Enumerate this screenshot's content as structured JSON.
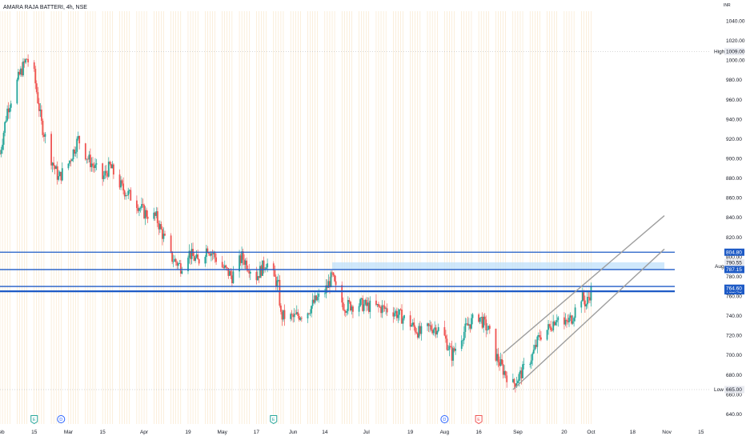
{
  "header": {
    "title": "AMARA RAJA BATTERI, 4h, NSE",
    "currency": "INR"
  },
  "colors": {
    "up": "#26a69a",
    "down": "#ef5350",
    "level_line": "#1e5bc6",
    "channel": "#9e9e9e",
    "grid": "#f5d7a8",
    "zone": "#bbdefb"
  },
  "chart_data": {
    "type": "candlestick",
    "timeframe": "4h",
    "ylim": [
      630,
      1050
    ],
    "y_ticks": [
      640,
      660,
      680,
      700,
      720,
      740,
      760,
      780,
      800,
      820,
      840,
      860,
      880,
      900,
      920,
      940,
      960,
      980,
      1000,
      1020,
      1040
    ],
    "x_ticks": [
      {
        "label": "Feb",
        "date": "2021-02-01"
      },
      {
        "label": "15",
        "date": "2021-02-15"
      },
      {
        "label": "Mar",
        "date": "2021-03-01"
      },
      {
        "label": "15",
        "date": "2021-03-15"
      },
      {
        "label": "Apr",
        "date": "2021-04-01"
      },
      {
        "label": "19",
        "date": "2021-04-19"
      },
      {
        "label": "May",
        "date": "2021-05-03"
      },
      {
        "label": "17",
        "date": "2021-05-17"
      },
      {
        "label": "Jun",
        "date": "2021-06-01"
      },
      {
        "label": "14",
        "date": "2021-06-14"
      },
      {
        "label": "Jul",
        "date": "2021-07-01"
      },
      {
        "label": "19",
        "date": "2021-07-19"
      },
      {
        "label": "Aug",
        "date": "2021-08-02"
      },
      {
        "label": "16",
        "date": "2021-08-16"
      },
      {
        "label": "Sep",
        "date": "2021-09-01"
      },
      {
        "label": "20",
        "date": "2021-09-20"
      },
      {
        "label": "Oct",
        "date": "2021-10-01"
      },
      {
        "label": "18",
        "date": "2021-10-18"
      },
      {
        "label": "Nov",
        "date": "2021-11-01"
      },
      {
        "label": "15",
        "date": "2021-11-15"
      }
    ],
    "price_path": [
      [
        "2021-02-01",
        905
      ],
      [
        "2021-02-04",
        950
      ],
      [
        "2021-02-09",
        985
      ],
      [
        "2021-02-12",
        1002
      ],
      [
        "2021-02-15",
        985
      ],
      [
        "2021-02-18",
        935
      ],
      [
        "2021-02-22",
        900
      ],
      [
        "2021-02-25",
        880
      ],
      [
        "2021-03-01",
        895
      ],
      [
        "2021-03-05",
        920
      ],
      [
        "2021-03-09",
        900
      ],
      [
        "2021-03-15",
        880
      ],
      [
        "2021-03-18",
        892
      ],
      [
        "2021-03-23",
        870
      ],
      [
        "2021-03-29",
        855
      ],
      [
        "2021-04-01",
        845
      ],
      [
        "2021-04-06",
        840
      ],
      [
        "2021-04-12",
        800
      ],
      [
        "2021-04-16",
        790
      ],
      [
        "2021-04-19",
        805
      ],
      [
        "2021-04-23",
        795
      ],
      [
        "2021-04-27",
        810
      ],
      [
        "2021-05-03",
        790
      ],
      [
        "2021-05-07",
        780
      ],
      [
        "2021-05-11",
        800
      ],
      [
        "2021-05-14",
        790
      ],
      [
        "2021-05-17",
        780
      ],
      [
        "2021-05-21",
        795
      ],
      [
        "2021-05-26",
        770
      ],
      [
        "2021-05-27",
        740
      ],
      [
        "2021-06-01",
        738
      ],
      [
        "2021-06-07",
        745
      ],
      [
        "2021-06-10",
        755
      ],
      [
        "2021-06-14",
        765
      ],
      [
        "2021-06-17",
        780
      ],
      [
        "2021-06-19",
        762
      ],
      [
        "2021-06-22",
        750
      ],
      [
        "2021-06-28",
        752
      ],
      [
        "2021-07-01",
        750
      ],
      [
        "2021-07-07",
        748
      ],
      [
        "2021-07-12",
        745
      ],
      [
        "2021-07-16",
        738
      ],
      [
        "2021-07-19",
        732
      ],
      [
        "2021-07-23",
        722
      ],
      [
        "2021-07-27",
        728
      ],
      [
        "2021-07-30",
        728
      ],
      [
        "2021-08-02",
        718
      ],
      [
        "2021-08-05",
        700
      ],
      [
        "2021-08-09",
        720
      ],
      [
        "2021-08-12",
        732
      ],
      [
        "2021-08-16",
        740
      ],
      [
        "2021-08-20",
        725
      ],
      [
        "2021-08-23",
        700
      ],
      [
        "2021-08-26",
        685
      ],
      [
        "2021-08-30",
        670
      ],
      [
        "2021-09-02",
        680
      ],
      [
        "2021-09-07",
        700
      ],
      [
        "2021-09-10",
        720
      ],
      [
        "2021-09-14",
        728
      ],
      [
        "2021-09-17",
        740
      ],
      [
        "2021-09-20",
        730
      ],
      [
        "2021-09-23",
        738
      ],
      [
        "2021-09-27",
        760
      ],
      [
        "2021-09-29",
        752
      ],
      [
        "2021-10-01",
        766
      ]
    ],
    "period_high": {
      "label": "High",
      "value": 1009.0
    },
    "period_low": {
      "label": "Low",
      "value": 665.0
    },
    "horizontal_levels": [
      {
        "value": 804.8,
        "label": "804.80"
      },
      {
        "value": 787.15,
        "label": "787.15"
      },
      {
        "value": 769.95,
        "label": "769.95"
      },
      {
        "value": 765.45,
        "label": "765.45"
      },
      {
        "value": 764.6,
        "label": "764.60"
      }
    ],
    "zone": {
      "low": 787.15,
      "high": 794.5,
      "start": "2021-06-17",
      "end": "2021-10-31",
      "label": "Aug",
      "value_label": "790.55"
    },
    "channel": [
      {
        "start": [
          "2021-08-26",
          702
        ],
        "end": [
          "2021-10-31",
          842
        ]
      },
      {
        "start": [
          "2021-08-30",
          665
        ],
        "end": [
          "2021-10-31",
          808
        ]
      }
    ],
    "events": [
      {
        "type": "E",
        "date": "2021-02-15",
        "color": "#26a69a"
      },
      {
        "type": "D",
        "date": "2021-02-26",
        "color": "#2962ff"
      },
      {
        "type": "E",
        "date": "2021-05-24",
        "color": "#26a69a"
      },
      {
        "type": "D",
        "date": "2021-08-02",
        "color": "#2962ff"
      },
      {
        "type": "E",
        "date": "2021-08-16",
        "color": "#ef5350"
      }
    ]
  }
}
